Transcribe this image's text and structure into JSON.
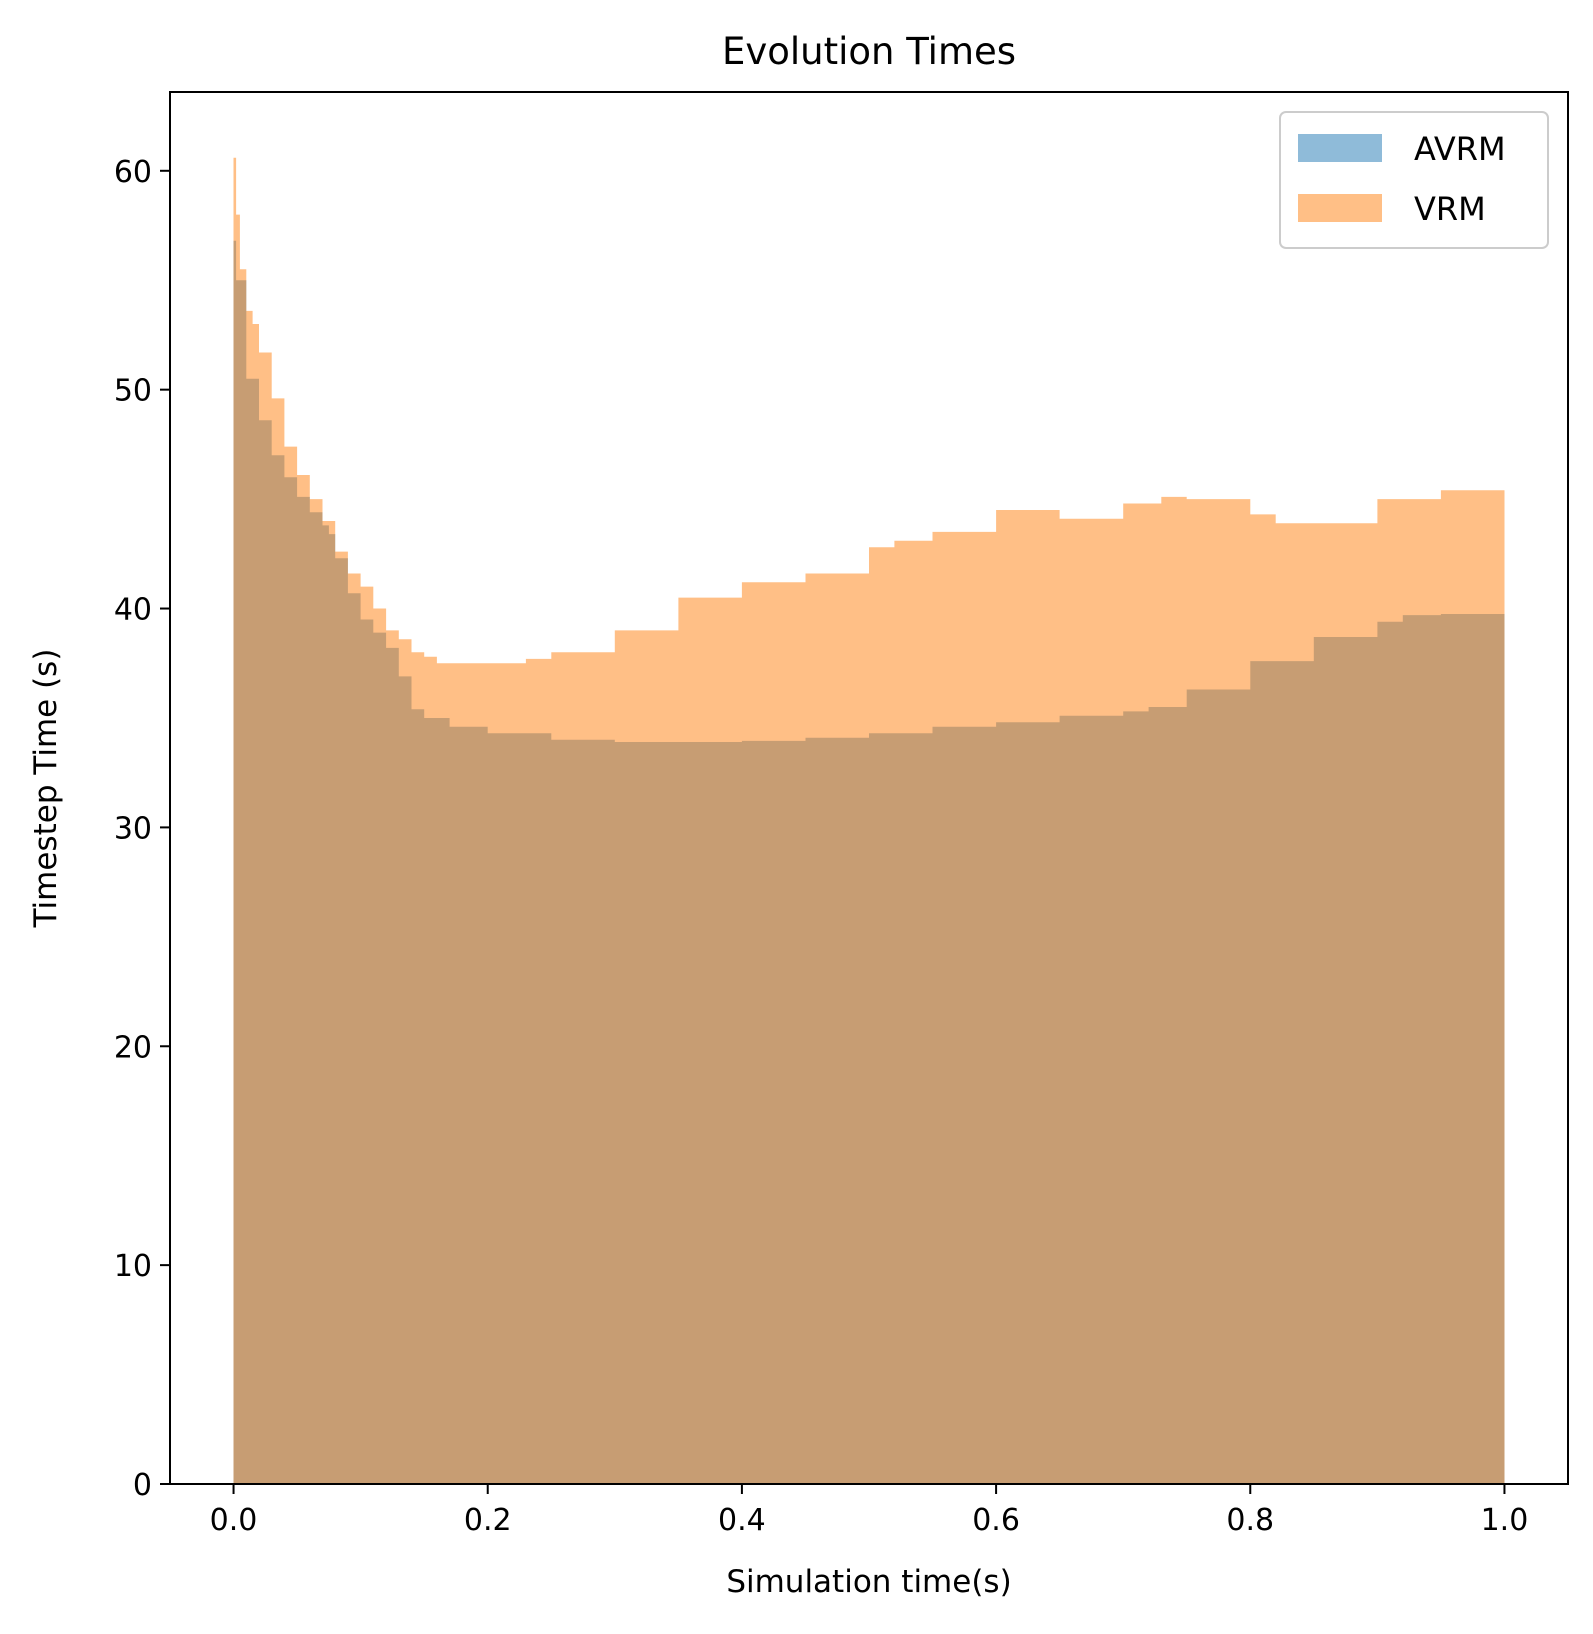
{
  "chart_data": {
    "type": "area",
    "title": "Evolution Times",
    "xlabel": "Simulation time(s)",
    "ylabel": "Timestep Time (s)",
    "xlim": [
      -0.05,
      1.05
    ],
    "ylim": [
      0,
      63.6
    ],
    "xticks": [
      0.0,
      0.2,
      0.4,
      0.6,
      0.8,
      1.0
    ],
    "xtick_labels": [
      "0.0",
      "0.2",
      "0.4",
      "0.6",
      "0.8",
      "1.0"
    ],
    "yticks": [
      0,
      10,
      20,
      30,
      40,
      50,
      60
    ],
    "ytick_labels": [
      "0",
      "10",
      "20",
      "30",
      "40",
      "50",
      "60"
    ],
    "grid": false,
    "legend_position": "top-right",
    "series": [
      {
        "name": "AVRM",
        "color": "#1f77b4",
        "alpha": 0.5,
        "x": [
          0.0,
          0.002,
          0.01,
          0.02,
          0.03,
          0.04,
          0.05,
          0.06,
          0.07,
          0.075,
          0.08,
          0.09,
          0.1,
          0.11,
          0.12,
          0.13,
          0.14,
          0.15,
          0.17,
          0.2,
          0.25,
          0.3,
          0.35,
          0.4,
          0.45,
          0.5,
          0.55,
          0.6,
          0.65,
          0.7,
          0.72,
          0.75,
          0.8,
          0.85,
          0.9,
          0.92,
          0.95,
          1.0
        ],
        "values": [
          56.8,
          55.0,
          50.5,
          48.6,
          47.0,
          46.0,
          45.1,
          44.4,
          43.8,
          43.4,
          42.3,
          40.7,
          39.5,
          38.9,
          38.2,
          36.9,
          35.4,
          35.0,
          34.6,
          34.3,
          34.0,
          33.9,
          33.9,
          33.95,
          34.1,
          34.3,
          34.6,
          34.8,
          35.1,
          35.3,
          35.5,
          36.3,
          37.6,
          38.7,
          39.4,
          39.7,
          39.75,
          39.75
        ]
      },
      {
        "name": "VRM",
        "color": "#ff7f0e",
        "alpha": 0.5,
        "x": [
          0.0,
          0.002,
          0.005,
          0.01,
          0.015,
          0.02,
          0.03,
          0.04,
          0.05,
          0.06,
          0.07,
          0.08,
          0.09,
          0.1,
          0.11,
          0.12,
          0.13,
          0.14,
          0.15,
          0.16,
          0.2,
          0.23,
          0.25,
          0.3,
          0.35,
          0.4,
          0.45,
          0.5,
          0.52,
          0.55,
          0.6,
          0.65,
          0.7,
          0.73,
          0.75,
          0.8,
          0.82,
          0.85,
          0.9,
          0.95,
          1.0
        ],
        "values": [
          60.6,
          58.0,
          55.5,
          53.6,
          53.0,
          51.7,
          49.6,
          47.4,
          46.1,
          45.0,
          44.0,
          42.6,
          41.6,
          41.0,
          40.0,
          39.0,
          38.6,
          38.0,
          37.8,
          37.5,
          37.5,
          37.7,
          38.0,
          39.0,
          40.5,
          41.2,
          41.6,
          42.8,
          43.1,
          43.5,
          44.5,
          44.1,
          44.8,
          45.1,
          45.0,
          44.3,
          43.9,
          43.9,
          45.0,
          45.4,
          45.9
        ]
      }
    ]
  }
}
